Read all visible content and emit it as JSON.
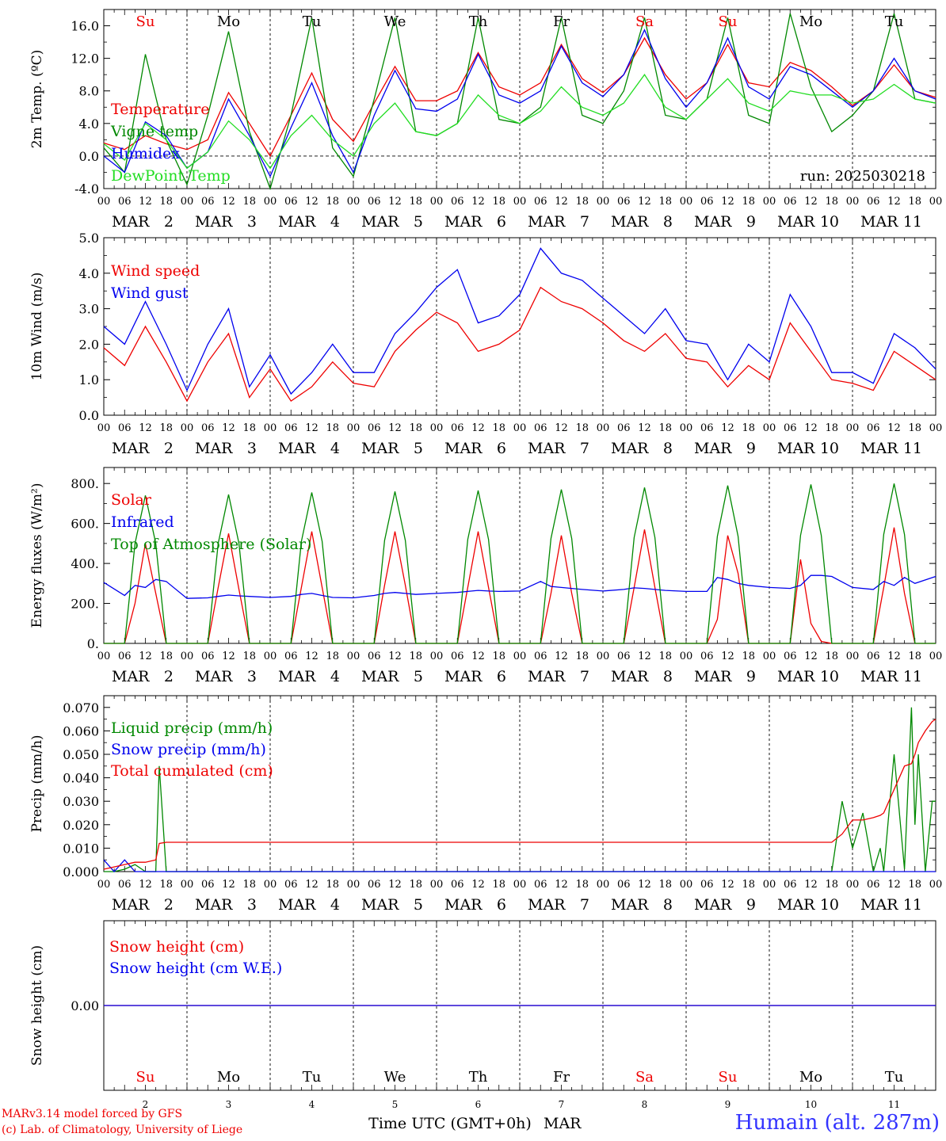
{
  "station": "Humain (alt. 287m)",
  "credits": {
    "line1": "MARv3.14 model forced by GFS",
    "line2": "(c) Lab. of Climatology, University of Liege"
  },
  "run_label": "run: 2025030218",
  "time_axis_label": "Time UTC (GMT+0h)",
  "month_label": "MAR",
  "hour_ticks": [
    "00",
    "06",
    "12",
    "18"
  ],
  "days": [
    {
      "date": "2",
      "abbr": "Su",
      "weekend": true
    },
    {
      "date": "3",
      "abbr": "Mo",
      "weekend": false
    },
    {
      "date": "4",
      "abbr": "Tu",
      "weekend": false
    },
    {
      "date": "5",
      "abbr": "We",
      "weekend": false
    },
    {
      "date": "6",
      "abbr": "Th",
      "weekend": false
    },
    {
      "date": "7",
      "abbr": "Fr",
      "weekend": false
    },
    {
      "date": "8",
      "abbr": "Sa",
      "weekend": true
    },
    {
      "date": "9",
      "abbr": "Su",
      "weekend": true
    },
    {
      "date": "10",
      "abbr": "Mo",
      "weekend": false
    },
    {
      "date": "11",
      "abbr": "Tu",
      "weekend": false
    }
  ],
  "colors": {
    "red": "#ee0000",
    "blue": "#0000ee",
    "dark_green": "#008800",
    "light_green": "#22dd22",
    "weekend": "#ee0000",
    "station": "#3333ff"
  },
  "chart_data": [
    {
      "id": "temperature",
      "type": "line",
      "ylabel": "2m Temp. (ºC)",
      "ylim": [
        -4,
        18
      ],
      "yticks": [
        "-4.0",
        "0.0",
        "4.0",
        "8.0",
        "12.0",
        "16.0"
      ],
      "ytick_values": [
        -4,
        0,
        4,
        8,
        12,
        16
      ],
      "zero_line": true,
      "x_hours": [
        0,
        6,
        12,
        18,
        24,
        30,
        36,
        42,
        48,
        54,
        60,
        66,
        72,
        78,
        84,
        90,
        96,
        102,
        108,
        114,
        120,
        126,
        132,
        138,
        144,
        150,
        156,
        162,
        168,
        174,
        180,
        186,
        192,
        198,
        204,
        210,
        216,
        222,
        228,
        234,
        240
      ],
      "series": [
        {
          "name": "Temperature",
          "color": "red",
          "values": [
            1.6,
            0.8,
            2.5,
            1.5,
            0.8,
            2.0,
            7.8,
            4.0,
            0.0,
            5.0,
            10.2,
            4.5,
            1.8,
            6.5,
            11.0,
            6.8,
            6.8,
            8.0,
            12.7,
            8.5,
            7.5,
            9.0,
            13.7,
            9.5,
            7.8,
            10.0,
            14.5,
            10.0,
            7.0,
            9.0,
            13.7,
            9.0,
            8.5,
            11.5,
            10.5,
            8.5,
            6.2,
            8.0,
            11.2,
            8.0,
            7.2
          ]
        },
        {
          "name": "Vigne temp",
          "color": "dark_green",
          "values": [
            1.0,
            -2.0,
            12.5,
            2.0,
            -3.5,
            5.0,
            15.3,
            3.0,
            -4.0,
            5.0,
            17.0,
            1.0,
            -2.5,
            7.0,
            17.0,
            3.0,
            2.5,
            4.0,
            17.0,
            4.5,
            4.0,
            6.0,
            17.0,
            5.0,
            4.0,
            8.0,
            17.0,
            5.0,
            4.5,
            7.0,
            17.0,
            5.0,
            4.0,
            17.5,
            8.5,
            3.0,
            5.0,
            8.0,
            17.5,
            7.0,
            6.5
          ]
        },
        {
          "name": "Humidex",
          "color": "blue",
          "values": [
            0.0,
            -2.0,
            4.2,
            2.5,
            -1.5,
            0.5,
            7.0,
            2.5,
            -2.5,
            3.5,
            9.0,
            2.5,
            -2.0,
            5.0,
            10.5,
            5.8,
            5.5,
            7.0,
            12.5,
            7.5,
            6.5,
            8.0,
            13.5,
            9.0,
            7.3,
            10.0,
            15.5,
            9.5,
            6.0,
            9.0,
            14.5,
            8.5,
            7.0,
            11.0,
            10.0,
            8.0,
            6.0,
            8.0,
            12.0,
            8.0,
            7.0
          ]
        },
        {
          "name": "DewPoint Temp",
          "color": "light_green",
          "values": [
            1.5,
            -0.5,
            4.0,
            2.0,
            -1.5,
            0.5,
            4.3,
            2.0,
            -1.5,
            2.5,
            5.0,
            2.0,
            0.0,
            4.0,
            6.5,
            3.0,
            2.5,
            4.0,
            7.5,
            5.0,
            4.0,
            5.5,
            8.5,
            6.0,
            5.0,
            6.5,
            10.0,
            6.0,
            4.5,
            7.0,
            9.5,
            6.5,
            5.5,
            8.0,
            7.5,
            7.5,
            6.5,
            7.0,
            8.8,
            7.0,
            6.5
          ]
        }
      ]
    },
    {
      "id": "wind",
      "type": "line",
      "ylabel": "10m Wind (m/s)",
      "ylim": [
        0,
        5
      ],
      "yticks": [
        "0.0",
        "1.0",
        "2.0",
        "3.0",
        "4.0",
        "5.0"
      ],
      "ytick_values": [
        0,
        1,
        2,
        3,
        4,
        5
      ],
      "x_hours": [
        0,
        6,
        12,
        18,
        24,
        30,
        36,
        42,
        48,
        54,
        60,
        66,
        72,
        78,
        84,
        90,
        96,
        102,
        108,
        114,
        120,
        126,
        132,
        138,
        144,
        150,
        156,
        162,
        168,
        174,
        180,
        186,
        192,
        198,
        204,
        210,
        216,
        222,
        228,
        234,
        240
      ],
      "series": [
        {
          "name": "Wind speed",
          "color": "red",
          "values": [
            1.9,
            1.4,
            2.5,
            1.5,
            0.4,
            1.5,
            2.3,
            0.5,
            1.3,
            0.4,
            0.8,
            1.5,
            0.9,
            0.8,
            1.8,
            2.4,
            2.9,
            2.6,
            1.8,
            2.0,
            2.4,
            3.6,
            3.2,
            3.0,
            2.6,
            2.1,
            1.8,
            2.3,
            1.6,
            1.5,
            0.8,
            1.4,
            1.0,
            2.6,
            1.8,
            1.0,
            0.9,
            0.7,
            1.8,
            1.4,
            1.0
          ]
        },
        {
          "name": "Wind gust",
          "color": "blue",
          "values": [
            2.5,
            2.0,
            3.2,
            2.0,
            0.7,
            2.0,
            3.0,
            0.8,
            1.7,
            0.6,
            1.2,
            2.0,
            1.2,
            1.2,
            2.3,
            2.9,
            3.6,
            4.1,
            2.6,
            2.8,
            3.4,
            4.7,
            4.0,
            3.8,
            3.3,
            2.8,
            2.3,
            3.0,
            2.1,
            2.0,
            1.0,
            2.0,
            1.5,
            3.4,
            2.5,
            1.2,
            1.2,
            0.9,
            2.3,
            1.9,
            1.3
          ]
        }
      ]
    },
    {
      "id": "energy",
      "type": "line",
      "ylabel": "Energy fluxes (W/m²)",
      "ylim": [
        0,
        880
      ],
      "yticks": [
        "0.",
        "200.",
        "400.",
        "600.",
        "800."
      ],
      "ytick_values": [
        0,
        200,
        400,
        600,
        800
      ],
      "x_hours": [
        0,
        6,
        9,
        12,
        15,
        18,
        24,
        30,
        33,
        36,
        39,
        42,
        48,
        54,
        57,
        60,
        63,
        66,
        72,
        78,
        81,
        84,
        87,
        90,
        96,
        102,
        105,
        108,
        111,
        114,
        120,
        126,
        129,
        132,
        135,
        138,
        144,
        150,
        153,
        156,
        159,
        162,
        168,
        174,
        177,
        180,
        183,
        186,
        192,
        198,
        201,
        204,
        207,
        210,
        216,
        222,
        225,
        228,
        231,
        234,
        240
      ],
      "series": [
        {
          "name": "Solar",
          "color": "red",
          "values": [
            0,
            0,
            200,
            500,
            250,
            0,
            0,
            0,
            280,
            550,
            270,
            0,
            0,
            0,
            280,
            560,
            280,
            0,
            0,
            0,
            290,
            560,
            290,
            0,
            0,
            0,
            280,
            560,
            280,
            0,
            0,
            0,
            250,
            540,
            250,
            0,
            0,
            0,
            280,
            570,
            280,
            0,
            0,
            0,
            120,
            540,
            350,
            0,
            0,
            0,
            420,
            100,
            10,
            0,
            0,
            0,
            280,
            580,
            250,
            0,
            0
          ]
        },
        {
          "name": "Infrared",
          "color": "blue",
          "values": [
            305,
            240,
            290,
            280,
            320,
            310,
            225,
            228,
            235,
            242,
            238,
            235,
            230,
            235,
            245,
            250,
            240,
            230,
            228,
            240,
            250,
            255,
            250,
            245,
            250,
            255,
            260,
            265,
            262,
            260,
            262,
            310,
            285,
            280,
            275,
            270,
            262,
            270,
            278,
            275,
            270,
            265,
            260,
            260,
            330,
            320,
            300,
            290,
            280,
            275,
            290,
            340,
            340,
            335,
            280,
            270,
            310,
            290,
            330,
            300,
            335
          ]
        },
        {
          "name": "Top of Atmosphere (Solar)",
          "color": "dark_green",
          "values": [
            0,
            0,
            500,
            740,
            500,
            0,
            0,
            0,
            500,
            745,
            500,
            0,
            0,
            0,
            510,
            755,
            510,
            0,
            0,
            0,
            515,
            760,
            515,
            0,
            0,
            0,
            520,
            765,
            520,
            0,
            0,
            0,
            525,
            770,
            525,
            0,
            0,
            0,
            530,
            780,
            530,
            0,
            0,
            0,
            535,
            790,
            535,
            0,
            0,
            0,
            540,
            795,
            540,
            0,
            0,
            0,
            545,
            800,
            545,
            0,
            0
          ]
        }
      ]
    },
    {
      "id": "precip",
      "type": "line",
      "ylabel": "Precip (mm/h)",
      "ylim": [
        0,
        0.075
      ],
      "yticks": [
        "0.000",
        "0.010",
        "0.020",
        "0.030",
        "0.040",
        "0.050",
        "0.060",
        "0.070"
      ],
      "ytick_values": [
        0,
        0.01,
        0.02,
        0.03,
        0.04,
        0.05,
        0.06,
        0.07
      ],
      "x_hours": [
        0,
        3,
        6,
        9,
        12,
        15,
        16,
        18,
        20,
        24,
        48,
        96,
        144,
        192,
        210,
        213,
        216,
        219,
        222,
        224,
        225,
        228,
        231,
        233,
        234,
        235,
        237,
        239,
        240
      ],
      "series": [
        {
          "name": "Liquid precip (mm/h)",
          "color": "dark_green",
          "values": [
            0,
            0,
            0.001,
            0.003,
            0,
            0,
            0.045,
            0,
            0,
            0,
            0,
            0,
            0,
            0,
            0,
            0.03,
            0.01,
            0.025,
            0,
            0.01,
            0,
            0.05,
            0.001,
            0.07,
            0.02,
            0.05,
            0.0,
            0.03,
            0.03
          ]
        },
        {
          "name": "Snow precip (mm/h)",
          "color": "blue",
          "values": [
            0.005,
            0,
            0.005,
            0,
            0,
            0,
            0,
            0,
            0,
            0,
            0,
            0,
            0,
            0,
            0,
            0,
            0,
            0,
            0,
            0,
            0,
            0,
            0,
            0,
            0,
            0,
            0,
            0,
            0
          ]
        },
        {
          "name": "Total cumulated (cm)",
          "color": "red",
          "values": [
            0.001,
            0.002,
            0.003,
            0.004,
            0.004,
            0.005,
            0.012,
            0.0125,
            0.0125,
            0.0125,
            0.0125,
            0.0125,
            0.0125,
            0.0125,
            0.0125,
            0.016,
            0.022,
            0.022,
            0.023,
            0.024,
            0.025,
            0.035,
            0.045,
            0.046,
            0.05,
            0.055,
            0.06,
            0.064,
            0.065
          ]
        }
      ]
    },
    {
      "id": "snow",
      "type": "line",
      "ylabel": "Snow height (cm)",
      "ylim": [
        -1,
        1
      ],
      "yticks": [
        "0.00"
      ],
      "ytick_values": [
        0
      ],
      "x_hours": [
        0,
        240
      ],
      "series": [
        {
          "name": "Snow height (cm)",
          "color": "red",
          "values": [
            0,
            0
          ]
        },
        {
          "name": "Snow height (cm W.E.)",
          "color": "blue",
          "values": [
            0,
            0
          ]
        }
      ]
    }
  ]
}
